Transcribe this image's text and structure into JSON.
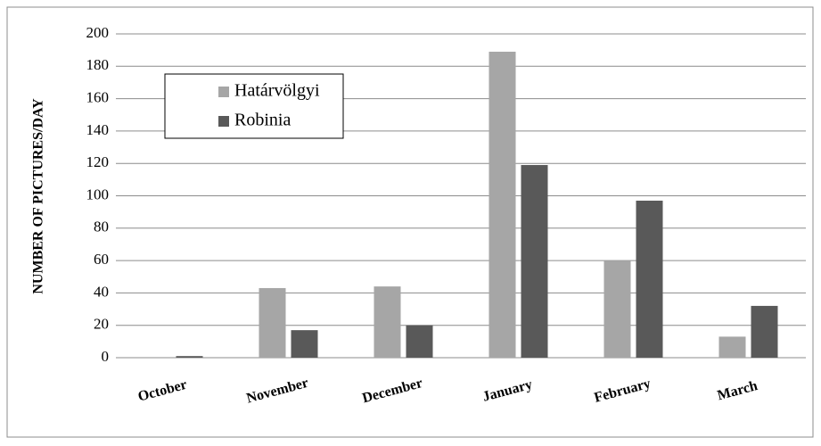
{
  "chart_data": {
    "type": "bar",
    "ylabel": "NUMBER OF PICTURES/DAY",
    "categories": [
      "October",
      "November",
      "December",
      "January",
      "February",
      "March"
    ],
    "series": [
      {
        "name": "Határvölgyi",
        "color": "#a6a6a6",
        "values": [
          0,
          43,
          44,
          189,
          60,
          13
        ]
      },
      {
        "name": "Robinia",
        "color": "#595959",
        "values": [
          1,
          17,
          20,
          119,
          97,
          32
        ]
      }
    ],
    "ylim": [
      0,
      200
    ],
    "yticks": [
      0,
      20,
      40,
      60,
      80,
      100,
      120,
      140,
      160,
      180,
      200
    ],
    "grid": true,
    "legend": "upper left"
  }
}
